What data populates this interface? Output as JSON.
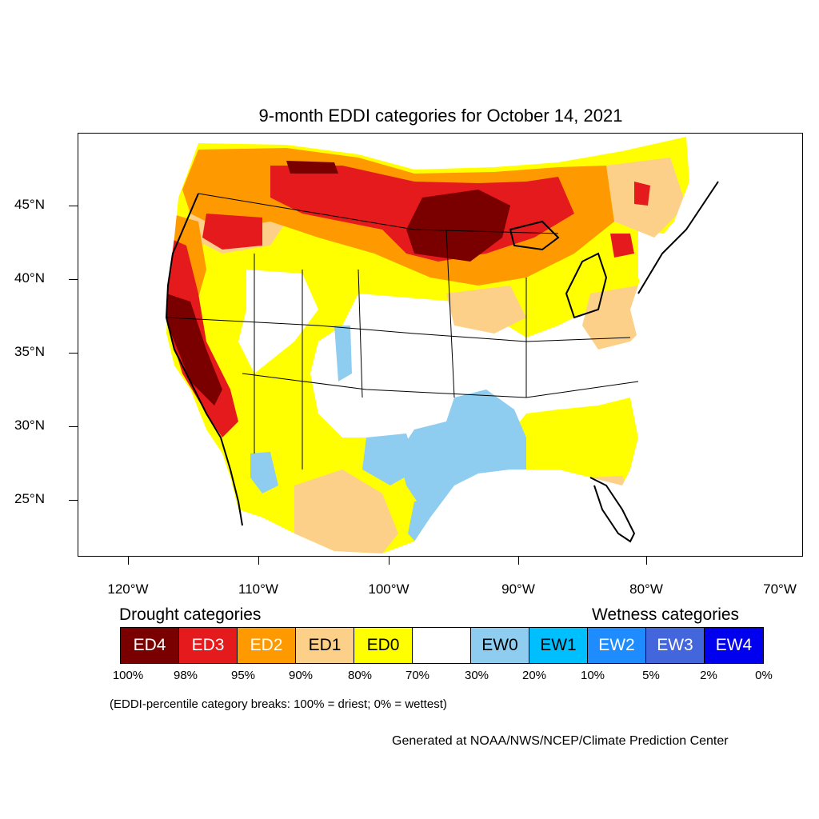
{
  "title": "9-month EDDI categories for October 14, 2021",
  "latitude_labels": [
    "45°N",
    "40°N",
    "35°N",
    "30°N",
    "25°N"
  ],
  "longitude_labels": [
    "120°W",
    "110°W",
    "100°W",
    "90°W",
    "80°W",
    "70°W"
  ],
  "drought_heading": "Drought categories",
  "wetness_heading": "Wetness categories",
  "legend": [
    {
      "label": "ED4",
      "color": "#7a0000",
      "text_color": "#ffffff"
    },
    {
      "label": "ED3",
      "color": "#e41a1c",
      "text_color": "#ffffff"
    },
    {
      "label": "ED2",
      "color": "#fe9900",
      "text_color": "#ffffff"
    },
    {
      "label": "ED1",
      "color": "#fdd08a",
      "text_color": "#000000"
    },
    {
      "label": "ED0",
      "color": "#ffff00",
      "text_color": "#000000"
    },
    {
      "label": "",
      "color": "#ffffff",
      "text_color": "#000000"
    },
    {
      "label": "EW0",
      "color": "#8ecdf0",
      "text_color": "#000000"
    },
    {
      "label": "EW1",
      "color": "#00bfff",
      "text_color": "#000000"
    },
    {
      "label": "EW2",
      "color": "#1e8cff",
      "text_color": "#ffffff"
    },
    {
      "label": "EW3",
      "color": "#4466dd",
      "text_color": "#ffffff"
    },
    {
      "label": "EW4",
      "color": "#0000ee",
      "text_color": "#ffffff"
    }
  ],
  "percentile_breaks": [
    "100%",
    "98%",
    "95%",
    "90%",
    "80%",
    "70%",
    "30%",
    "20%",
    "10%",
    "5%",
    "2%",
    "0%"
  ],
  "note": "(EDDI-percentile category breaks: 100% = driest; 0% = wettest)",
  "credit": "Generated at NOAA/NWS/NCEP/Climate Prediction Center"
}
